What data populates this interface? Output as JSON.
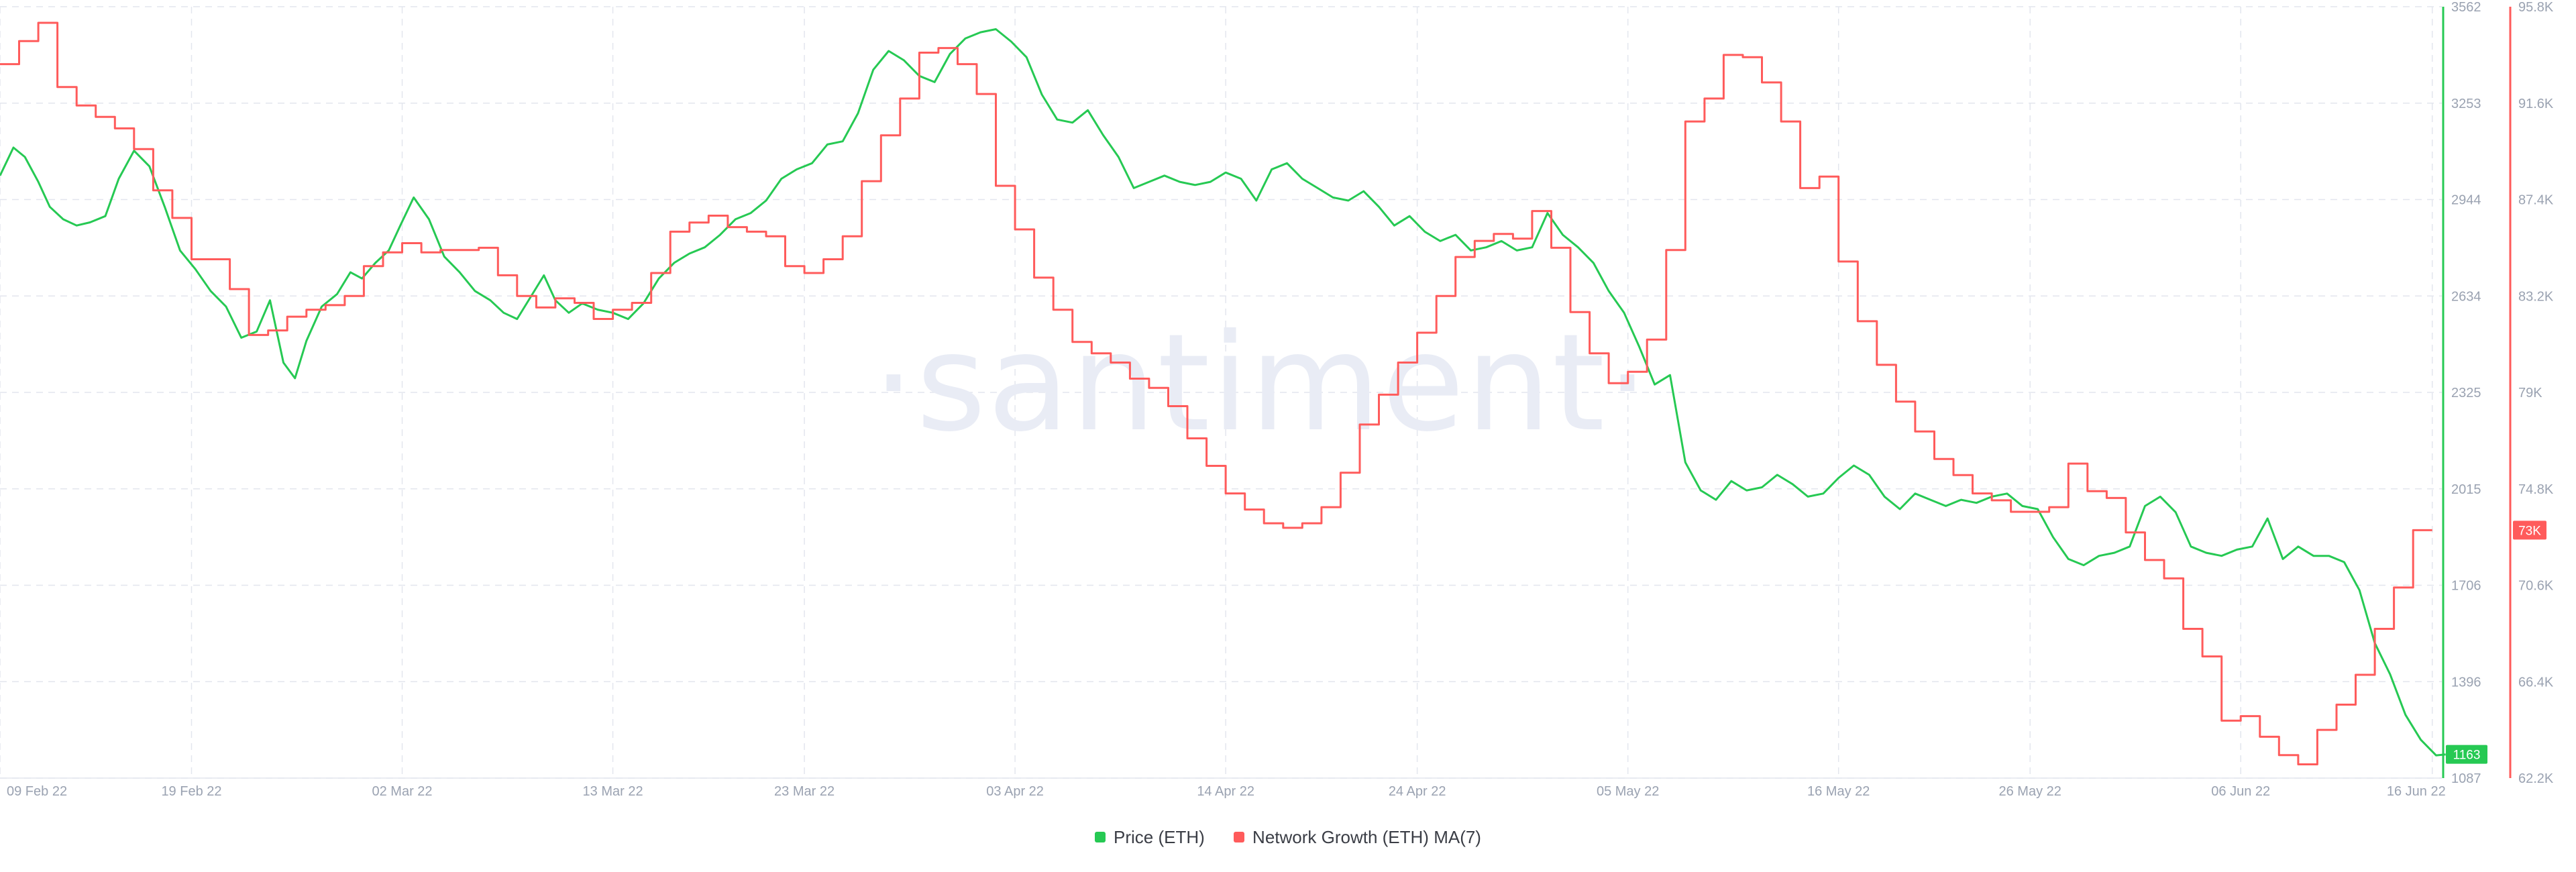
{
  "chart_data": {
    "type": "line",
    "title": "",
    "watermark": "·santiment·",
    "x_tick_labels": [
      "09 Feb 22",
      "19 Feb 22",
      "02 Mar 22",
      "13 Mar 22",
      "23 Mar 22",
      "03 Apr 22",
      "14 Apr 22",
      "24 Apr 22",
      "05 May 22",
      "16 May 22",
      "26 May 22",
      "06 Jun 22",
      "16 Jun 22"
    ],
    "x_tick_days": [
      0,
      10,
      21,
      32,
      42,
      53,
      64,
      74,
      85,
      96,
      106,
      117,
      127
    ],
    "x_range_days": [
      0,
      127.5
    ],
    "grid": true,
    "legend_position": "bottom-center",
    "series": [
      {
        "name": "Price (ETH)",
        "color": "#26c953",
        "axis": "left",
        "axis_ticks": [
          "3562",
          "3253",
          "2944",
          "2634",
          "2325",
          "2015",
          "1706",
          "1396",
          "1087"
        ],
        "ylim": [
          1087,
          3562
        ],
        "last_value_label": "1163",
        "points": [
          [
            0,
            3020
          ],
          [
            0.7,
            3110
          ],
          [
            1.3,
            3080
          ],
          [
            2,
            3000
          ],
          [
            2.6,
            2920
          ],
          [
            3.3,
            2880
          ],
          [
            4,
            2860
          ],
          [
            4.7,
            2870
          ],
          [
            5.5,
            2890
          ],
          [
            6.2,
            3010
          ],
          [
            7,
            3100
          ],
          [
            7.8,
            3050
          ],
          [
            8.6,
            2920
          ],
          [
            9.4,
            2780
          ],
          [
            10.2,
            2720
          ],
          [
            11,
            2650
          ],
          [
            11.8,
            2600
          ],
          [
            12.6,
            2500
          ],
          [
            13.4,
            2520
          ],
          [
            14.1,
            2620
          ],
          [
            14.8,
            2420
          ],
          [
            15.4,
            2370
          ],
          [
            16,
            2490
          ],
          [
            16.8,
            2600
          ],
          [
            17.6,
            2640
          ],
          [
            18.3,
            2710
          ],
          [
            18.9,
            2690
          ],
          [
            19.6,
            2740
          ],
          [
            20.3,
            2780
          ],
          [
            20.9,
            2860
          ],
          [
            21.6,
            2950
          ],
          [
            22.4,
            2880
          ],
          [
            23.2,
            2760
          ],
          [
            24,
            2710
          ],
          [
            24.8,
            2650
          ],
          [
            25.6,
            2620
          ],
          [
            26.3,
            2580
          ],
          [
            27,
            2560
          ],
          [
            27.8,
            2640
          ],
          [
            28.4,
            2700
          ],
          [
            29,
            2620
          ],
          [
            29.7,
            2580
          ],
          [
            30.4,
            2610
          ],
          [
            31.2,
            2590
          ],
          [
            32,
            2580
          ],
          [
            32.8,
            2560
          ],
          [
            33.6,
            2610
          ],
          [
            34.4,
            2690
          ],
          [
            35.2,
            2740
          ],
          [
            36,
            2770
          ],
          [
            36.8,
            2790
          ],
          [
            37.6,
            2830
          ],
          [
            38.4,
            2880
          ],
          [
            39.2,
            2900
          ],
          [
            40,
            2940
          ],
          [
            40.8,
            3010
          ],
          [
            41.6,
            3040
          ],
          [
            42.4,
            3060
          ],
          [
            43.2,
            3120
          ],
          [
            44,
            3130
          ],
          [
            44.8,
            3220
          ],
          [
            45.6,
            3360
          ],
          [
            46.4,
            3420
          ],
          [
            47.2,
            3390
          ],
          [
            48,
            3340
          ],
          [
            48.8,
            3320
          ],
          [
            49.6,
            3410
          ],
          [
            50.4,
            3460
          ],
          [
            51.2,
            3480
          ],
          [
            52,
            3490
          ],
          [
            52.8,
            3450
          ],
          [
            53.6,
            3400
          ],
          [
            54.4,
            3280
          ],
          [
            55.2,
            3200
          ],
          [
            56,
            3190
          ],
          [
            56.8,
            3230
          ],
          [
            57.6,
            3150
          ],
          [
            58.4,
            3080
          ],
          [
            59.2,
            2980
          ],
          [
            60,
            3000
          ],
          [
            60.8,
            3020
          ],
          [
            61.6,
            3000
          ],
          [
            62.4,
            2990
          ],
          [
            63.2,
            3000
          ],
          [
            64,
            3030
          ],
          [
            64.8,
            3010
          ],
          [
            65.6,
            2940
          ],
          [
            66.4,
            3040
          ],
          [
            67.2,
            3060
          ],
          [
            68,
            3010
          ],
          [
            68.8,
            2980
          ],
          [
            69.6,
            2950
          ],
          [
            70.4,
            2940
          ],
          [
            71.2,
            2970
          ],
          [
            72,
            2920
          ],
          [
            72.8,
            2860
          ],
          [
            73.6,
            2890
          ],
          [
            74.4,
            2840
          ],
          [
            75.2,
            2810
          ],
          [
            76,
            2830
          ],
          [
            76.8,
            2780
          ],
          [
            77.6,
            2790
          ],
          [
            78.4,
            2810
          ],
          [
            79.2,
            2780
          ],
          [
            80,
            2790
          ],
          [
            80.8,
            2900
          ],
          [
            81.6,
            2830
          ],
          [
            82.4,
            2790
          ],
          [
            83.2,
            2740
          ],
          [
            84,
            2650
          ],
          [
            84.8,
            2580
          ],
          [
            85.6,
            2470
          ],
          [
            86.4,
            2350
          ],
          [
            87.2,
            2380
          ],
          [
            88,
            2100
          ],
          [
            88.8,
            2010
          ],
          [
            89.6,
            1980
          ],
          [
            90.4,
            2040
          ],
          [
            91.2,
            2010
          ],
          [
            92,
            2020
          ],
          [
            92.8,
            2060
          ],
          [
            93.6,
            2030
          ],
          [
            94.4,
            1990
          ],
          [
            95.2,
            2000
          ],
          [
            96,
            2050
          ],
          [
            96.8,
            2090
          ],
          [
            97.6,
            2060
          ],
          [
            98.4,
            1990
          ],
          [
            99.2,
            1950
          ],
          [
            100,
            2000
          ],
          [
            100.8,
            1980
          ],
          [
            101.6,
            1960
          ],
          [
            102.4,
            1980
          ],
          [
            103.2,
            1970
          ],
          [
            104,
            1990
          ],
          [
            104.8,
            2000
          ],
          [
            105.6,
            1960
          ],
          [
            106.4,
            1950
          ],
          [
            107.2,
            1860
          ],
          [
            108,
            1790
          ],
          [
            108.8,
            1770
          ],
          [
            109.6,
            1800
          ],
          [
            110.4,
            1810
          ],
          [
            111.2,
            1830
          ],
          [
            112,
            1960
          ],
          [
            112.8,
            1990
          ],
          [
            113.6,
            1940
          ],
          [
            114.4,
            1830
          ],
          [
            115.2,
            1810
          ],
          [
            116,
            1800
          ],
          [
            116.8,
            1820
          ],
          [
            117.6,
            1830
          ],
          [
            118.4,
            1920
          ],
          [
            119.2,
            1790
          ],
          [
            120,
            1830
          ],
          [
            120.8,
            1800
          ],
          [
            121.6,
            1800
          ],
          [
            122.4,
            1780
          ],
          [
            123.2,
            1690
          ],
          [
            124,
            1520
          ],
          [
            124.8,
            1420
          ],
          [
            125.6,
            1290
          ],
          [
            126.4,
            1210
          ],
          [
            127.2,
            1160
          ],
          [
            127.7,
            1163
          ]
        ]
      },
      {
        "name": "Network Growth (ETH) MA(7)",
        "color": "#ff5b5b",
        "axis": "right",
        "axis_ticks": [
          "95.8K",
          "91.6K",
          "87.4K",
          "83.2K",
          "79K",
          "74.8K",
          "70.6K",
          "66.4K",
          "62.2K"
        ],
        "ylim": [
          62200,
          95800
        ],
        "last_value_label": "73K",
        "points": [
          [
            0,
            93300
          ],
          [
            1,
            94300
          ],
          [
            2,
            95100
          ],
          [
            3,
            92300
          ],
          [
            4,
            91500
          ],
          [
            5,
            91000
          ],
          [
            6,
            90500
          ],
          [
            7,
            89600
          ],
          [
            8,
            87800
          ],
          [
            9,
            86600
          ],
          [
            10,
            84800
          ],
          [
            11,
            84800
          ],
          [
            12,
            83500
          ],
          [
            13,
            81500
          ],
          [
            14,
            81700
          ],
          [
            15,
            82300
          ],
          [
            16,
            82600
          ],
          [
            17,
            82800
          ],
          [
            18,
            83200
          ],
          [
            19,
            84500
          ],
          [
            20,
            85100
          ],
          [
            21,
            85500
          ],
          [
            22,
            85100
          ],
          [
            23,
            85200
          ],
          [
            24,
            85200
          ],
          [
            25,
            85300
          ],
          [
            26,
            84100
          ],
          [
            27,
            83200
          ],
          [
            28,
            82700
          ],
          [
            29,
            83100
          ],
          [
            30,
            82900
          ],
          [
            31,
            82200
          ],
          [
            32,
            82600
          ],
          [
            33,
            82900
          ],
          [
            34,
            84200
          ],
          [
            35,
            86000
          ],
          [
            36,
            86400
          ],
          [
            37,
            86700
          ],
          [
            38,
            86200
          ],
          [
            39,
            86000
          ],
          [
            40,
            85800
          ],
          [
            41,
            84500
          ],
          [
            42,
            84200
          ],
          [
            43,
            84800
          ],
          [
            44,
            85800
          ],
          [
            45,
            88200
          ],
          [
            46,
            90200
          ],
          [
            47,
            91800
          ],
          [
            48,
            93800
          ],
          [
            49,
            94000
          ],
          [
            50,
            93300
          ],
          [
            51,
            92000
          ],
          [
            52,
            88000
          ],
          [
            53,
            86100
          ],
          [
            54,
            84000
          ],
          [
            55,
            82600
          ],
          [
            56,
            81200
          ],
          [
            57,
            80700
          ],
          [
            58,
            80300
          ],
          [
            59,
            79600
          ],
          [
            60,
            79200
          ],
          [
            61,
            78400
          ],
          [
            62,
            77000
          ],
          [
            63,
            75800
          ],
          [
            64,
            74600
          ],
          [
            65,
            73900
          ],
          [
            66,
            73300
          ],
          [
            67,
            73100
          ],
          [
            68,
            73300
          ],
          [
            69,
            74000
          ],
          [
            70,
            75500
          ],
          [
            71,
            77600
          ],
          [
            72,
            78900
          ],
          [
            73,
            80300
          ],
          [
            74,
            81600
          ],
          [
            75,
            83200
          ],
          [
            76,
            84900
          ],
          [
            77,
            85600
          ],
          [
            78,
            85900
          ],
          [
            79,
            85700
          ],
          [
            80,
            86900
          ],
          [
            81,
            85300
          ],
          [
            82,
            82500
          ],
          [
            83,
            80700
          ],
          [
            84,
            79400
          ],
          [
            85,
            79900
          ],
          [
            86,
            81300
          ],
          [
            87,
            85200
          ],
          [
            88,
            90800
          ],
          [
            89,
            91800
          ],
          [
            90,
            93700
          ],
          [
            91,
            93600
          ],
          [
            92,
            92500
          ],
          [
            93,
            90800
          ],
          [
            94,
            87900
          ],
          [
            95,
            88400
          ],
          [
            96,
            84700
          ],
          [
            97,
            82100
          ],
          [
            98,
            80200
          ],
          [
            99,
            78600
          ],
          [
            100,
            77300
          ],
          [
            101,
            76100
          ],
          [
            102,
            75400
          ],
          [
            103,
            74600
          ],
          [
            104,
            74300
          ],
          [
            105,
            73800
          ],
          [
            106,
            73800
          ],
          [
            107,
            74000
          ],
          [
            108,
            75900
          ],
          [
            109,
            74700
          ],
          [
            110,
            74400
          ],
          [
            111,
            72900
          ],
          [
            112,
            71700
          ],
          [
            113,
            70900
          ],
          [
            114,
            68700
          ],
          [
            115,
            67500
          ],
          [
            116,
            64700
          ],
          [
            117,
            64900
          ],
          [
            118,
            64000
          ],
          [
            119,
            63200
          ],
          [
            120,
            62800
          ],
          [
            121,
            64300
          ],
          [
            122,
            65400
          ],
          [
            123,
            66700
          ],
          [
            124,
            68700
          ],
          [
            125,
            70500
          ],
          [
            126,
            73000
          ],
          [
            127,
            73000
          ]
        ]
      }
    ]
  }
}
